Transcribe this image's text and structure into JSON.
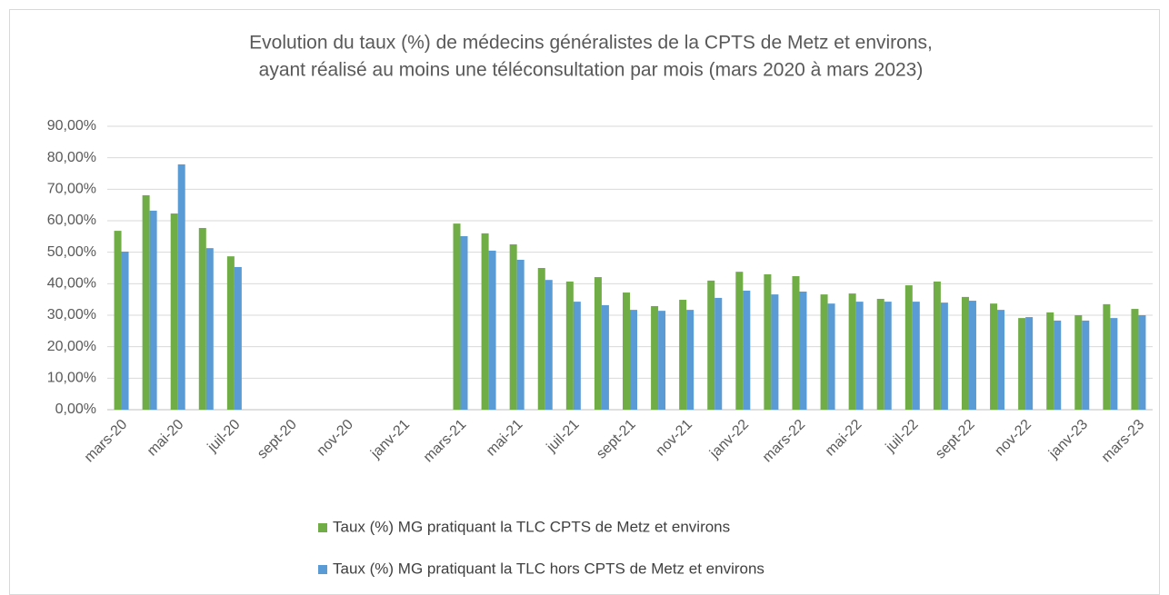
{
  "chart_data": {
    "type": "bar",
    "title": [
      "Evolution du taux (%) de médecins généralistes de la CPTS de Metz et environs,",
      "ayant réalisé au moins une téléconsultation par mois (mars 2020 à mars 2023)"
    ],
    "categories": [
      "mars-20",
      null,
      "mai-20",
      null,
      "juil-20",
      null,
      "sept-20",
      null,
      "nov-20",
      null,
      "janv-21",
      null,
      "mars-21",
      null,
      "mai-21",
      null,
      "juil-21",
      null,
      "sept-21",
      null,
      "nov-21",
      null,
      "janv-22",
      null,
      "mars-22",
      null,
      "mai-22",
      null,
      "juil-22",
      null,
      "sept-22",
      null,
      "nov-22",
      null,
      "janv-23",
      null,
      "mars-23"
    ],
    "series": [
      {
        "name": "Taux (%) MG pratiquant la TLC CPTS de Metz et environs",
        "color": "#70ad47",
        "values": [
          56.8,
          68.1,
          62.3,
          57.7,
          48.7,
          null,
          null,
          null,
          null,
          null,
          null,
          null,
          59.1,
          56.0,
          52.5,
          45.0,
          40.7,
          42.1,
          37.2,
          32.9,
          34.9,
          41.0,
          43.8,
          43.0,
          42.4,
          36.6,
          36.9,
          35.2,
          39.5,
          40.7,
          35.8,
          33.7,
          29.1,
          30.9,
          30.0,
          33.5,
          32.0
        ]
      },
      {
        "name": "Taux (%) MG pratiquant la TLC hors CPTS de Metz et environs",
        "color": "#5b9bd5",
        "values": [
          50.2,
          63.2,
          77.9,
          51.3,
          45.3,
          null,
          null,
          null,
          null,
          null,
          null,
          null,
          55.1,
          50.5,
          47.6,
          41.2,
          34.3,
          33.2,
          31.7,
          31.4,
          31.7,
          35.5,
          37.8,
          36.6,
          37.5,
          33.7,
          34.3,
          34.3,
          34.3,
          34.0,
          34.6,
          31.7,
          29.4,
          28.3,
          28.3,
          29.1,
          30.0
        ]
      }
    ],
    "ylim": [
      0,
      90
    ],
    "yticks": [
      {
        "value": 0,
        "label": "0,00%"
      },
      {
        "value": 10,
        "label": "10,00%"
      },
      {
        "value": 20,
        "label": "20,00%"
      },
      {
        "value": 30,
        "label": "30,00%"
      },
      {
        "value": 40,
        "label": "40,00%"
      },
      {
        "value": 50,
        "label": "50,00%"
      },
      {
        "value": 60,
        "label": "60,00%"
      },
      {
        "value": 70,
        "label": "70,00%"
      },
      {
        "value": 80,
        "label": "80,00%"
      },
      {
        "value": 90,
        "label": "90,00%"
      }
    ],
    "grid": true,
    "legend": "bottom"
  }
}
